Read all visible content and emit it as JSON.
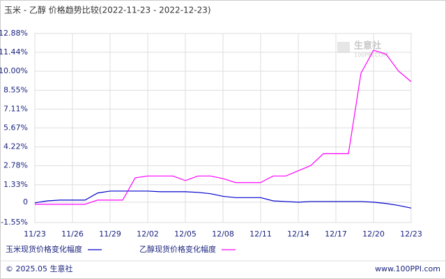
{
  "chart_data": {
    "type": "line",
    "title": "玉米 - 乙醇 价格趋势比较(2022-11-23 - 2022-12-23)",
    "categories": [
      "11/23",
      null,
      null,
      "11/26",
      null,
      null,
      "11/29",
      null,
      null,
      "12/02",
      null,
      null,
      "12/05",
      null,
      null,
      "12/08",
      null,
      null,
      "12/11",
      null,
      null,
      "12/14",
      null,
      null,
      "12/17",
      null,
      null,
      "12/20",
      null,
      null,
      "12/23"
    ],
    "series": [
      {
        "name": "玉米现货价格变化幅度",
        "color": "#0000cc",
        "values": [
          -0.05,
          0.1,
          0.16,
          0.16,
          0.16,
          0.7,
          0.85,
          0.85,
          0.85,
          0.85,
          0.8,
          0.8,
          0.8,
          0.75,
          0.65,
          0.45,
          0.35,
          0.35,
          0.35,
          0.1,
          0.05,
          0.0,
          0.05,
          0.05,
          0.05,
          0.05,
          0.05,
          0.0,
          -0.1,
          -0.25,
          -0.45
        ]
      },
      {
        "name": "乙醇现货价格变化幅度",
        "color": "#ff00ff",
        "values": [
          -0.16,
          -0.16,
          -0.16,
          -0.16,
          -0.16,
          0.16,
          0.16,
          0.16,
          1.86,
          2.0,
          2.0,
          2.0,
          1.65,
          2.0,
          2.0,
          1.8,
          1.5,
          1.5,
          1.5,
          2.0,
          2.0,
          2.4,
          2.8,
          3.7,
          3.7,
          3.7,
          9.85,
          11.6,
          11.3,
          10.0,
          9.2
        ]
      }
    ],
    "ylim": [
      -1.55,
      12.88
    ],
    "yticks": [
      {
        "value": -1.55,
        "label": "-1.55%"
      },
      0,
      {
        "value": 1.33,
        "label": "1.33%"
      },
      {
        "value": 2.78,
        "label": "2.78%"
      },
      {
        "value": 4.22,
        "label": "4.22%"
      },
      {
        "value": 5.67,
        "label": "5.67%"
      },
      {
        "value": 7.11,
        "label": "7.11%"
      },
      {
        "value": 8.55,
        "label": "8.55%"
      },
      {
        "value": 10.0,
        "label": "10.00%"
      },
      {
        "value": 11.44,
        "label": "11.44%"
      },
      {
        "value": 12.88,
        "label": "12.88%"
      }
    ],
    "grid": true,
    "watermark": [
      "生意社",
      "100PPI.COM"
    ],
    "footer": {
      "left": "© 2025.05 生意社",
      "right": "www.100PPI.com"
    }
  }
}
